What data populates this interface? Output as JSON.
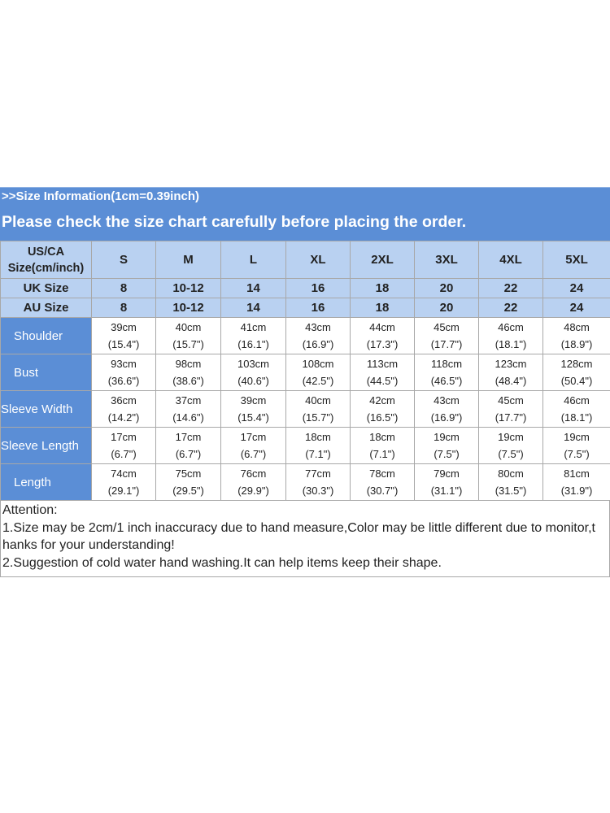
{
  "header": {
    "info_line": ">>Size Information(1cm=0.39inch)",
    "check_line": "Please check the size chart carefully before placing the order."
  },
  "size_rows": [
    {
      "label_line1": "US/CA",
      "label_line2": "Size(cm/inch)",
      "values": [
        "S",
        "M",
        "L",
        "XL",
        "2XL",
        "3XL",
        "4XL",
        "5XL"
      ]
    },
    {
      "label_line1": "UK Size",
      "values": [
        "8",
        "10-12",
        "14",
        "16",
        "18",
        "20",
        "22",
        "24"
      ]
    },
    {
      "label_line1": "AU Size",
      "values": [
        "8",
        "10-12",
        "14",
        "16",
        "18",
        "20",
        "22",
        "24"
      ]
    }
  ],
  "measurements": [
    {
      "label": "Shoulder",
      "cm": [
        "39cm",
        "40cm",
        "41cm",
        "43cm",
        "44cm",
        "45cm",
        "46cm",
        "48cm"
      ],
      "inch": [
        "(15.4\")",
        "(15.7\")",
        "(16.1\")",
        "(16.9\")",
        "(17.3\")",
        "(17.7\")",
        "(18.1\")",
        "(18.9\")"
      ]
    },
    {
      "label": "Bust",
      "cm": [
        "93cm",
        "98cm",
        "103cm",
        "108cm",
        "113cm",
        "118cm",
        "123cm",
        "128cm"
      ],
      "inch": [
        "(36.6\")",
        "(38.6\")",
        "(40.6\")",
        "(42.5\")",
        "(44.5\")",
        "(46.5\")",
        "(48.4\")",
        "(50.4\")"
      ]
    },
    {
      "label": "Sleeve Width",
      "cm": [
        "36cm",
        "37cm",
        "39cm",
        "40cm",
        "42cm",
        "43cm",
        "45cm",
        "46cm"
      ],
      "inch": [
        "(14.2\")",
        "(14.6\")",
        "(15.4\")",
        "(15.7\")",
        "(16.5\")",
        "(16.9\")",
        "(17.7\")",
        "(18.1\")"
      ]
    },
    {
      "label": "Sleeve Length",
      "cm": [
        "17cm",
        "17cm",
        "17cm",
        "18cm",
        "18cm",
        "19cm",
        "19cm",
        "19cm"
      ],
      "inch": [
        "(6.7\")",
        "(6.7\")",
        "(6.7\")",
        "(7.1\")",
        "(7.1\")",
        "(7.5\")",
        "(7.5\")",
        "(7.5\")"
      ]
    },
    {
      "label": "Length",
      "cm": [
        "74cm",
        "75cm",
        "76cm",
        "77cm",
        "78cm",
        "79cm",
        "80cm",
        "81cm"
      ],
      "inch": [
        "(29.1\")",
        "(29.5\")",
        "(29.9\")",
        "(30.3\")",
        "(30.7\")",
        "(31.1\")",
        "(31.5\")",
        "(31.9\")"
      ]
    }
  ],
  "notes": {
    "title": "Attention:",
    "line1a": "1.Size may be 2cm/1 inch inaccuracy due to hand measure,Color may be little different due to monitor,t",
    "line1b": "hanks for your understanding!",
    "line2": "2.Suggestion of cold water hand washing.It can help items keep their shape."
  },
  "colors": {
    "banner": "#5b8ed6",
    "header_cells": "#b9d1f1",
    "grid": "#a8a8a8"
  }
}
